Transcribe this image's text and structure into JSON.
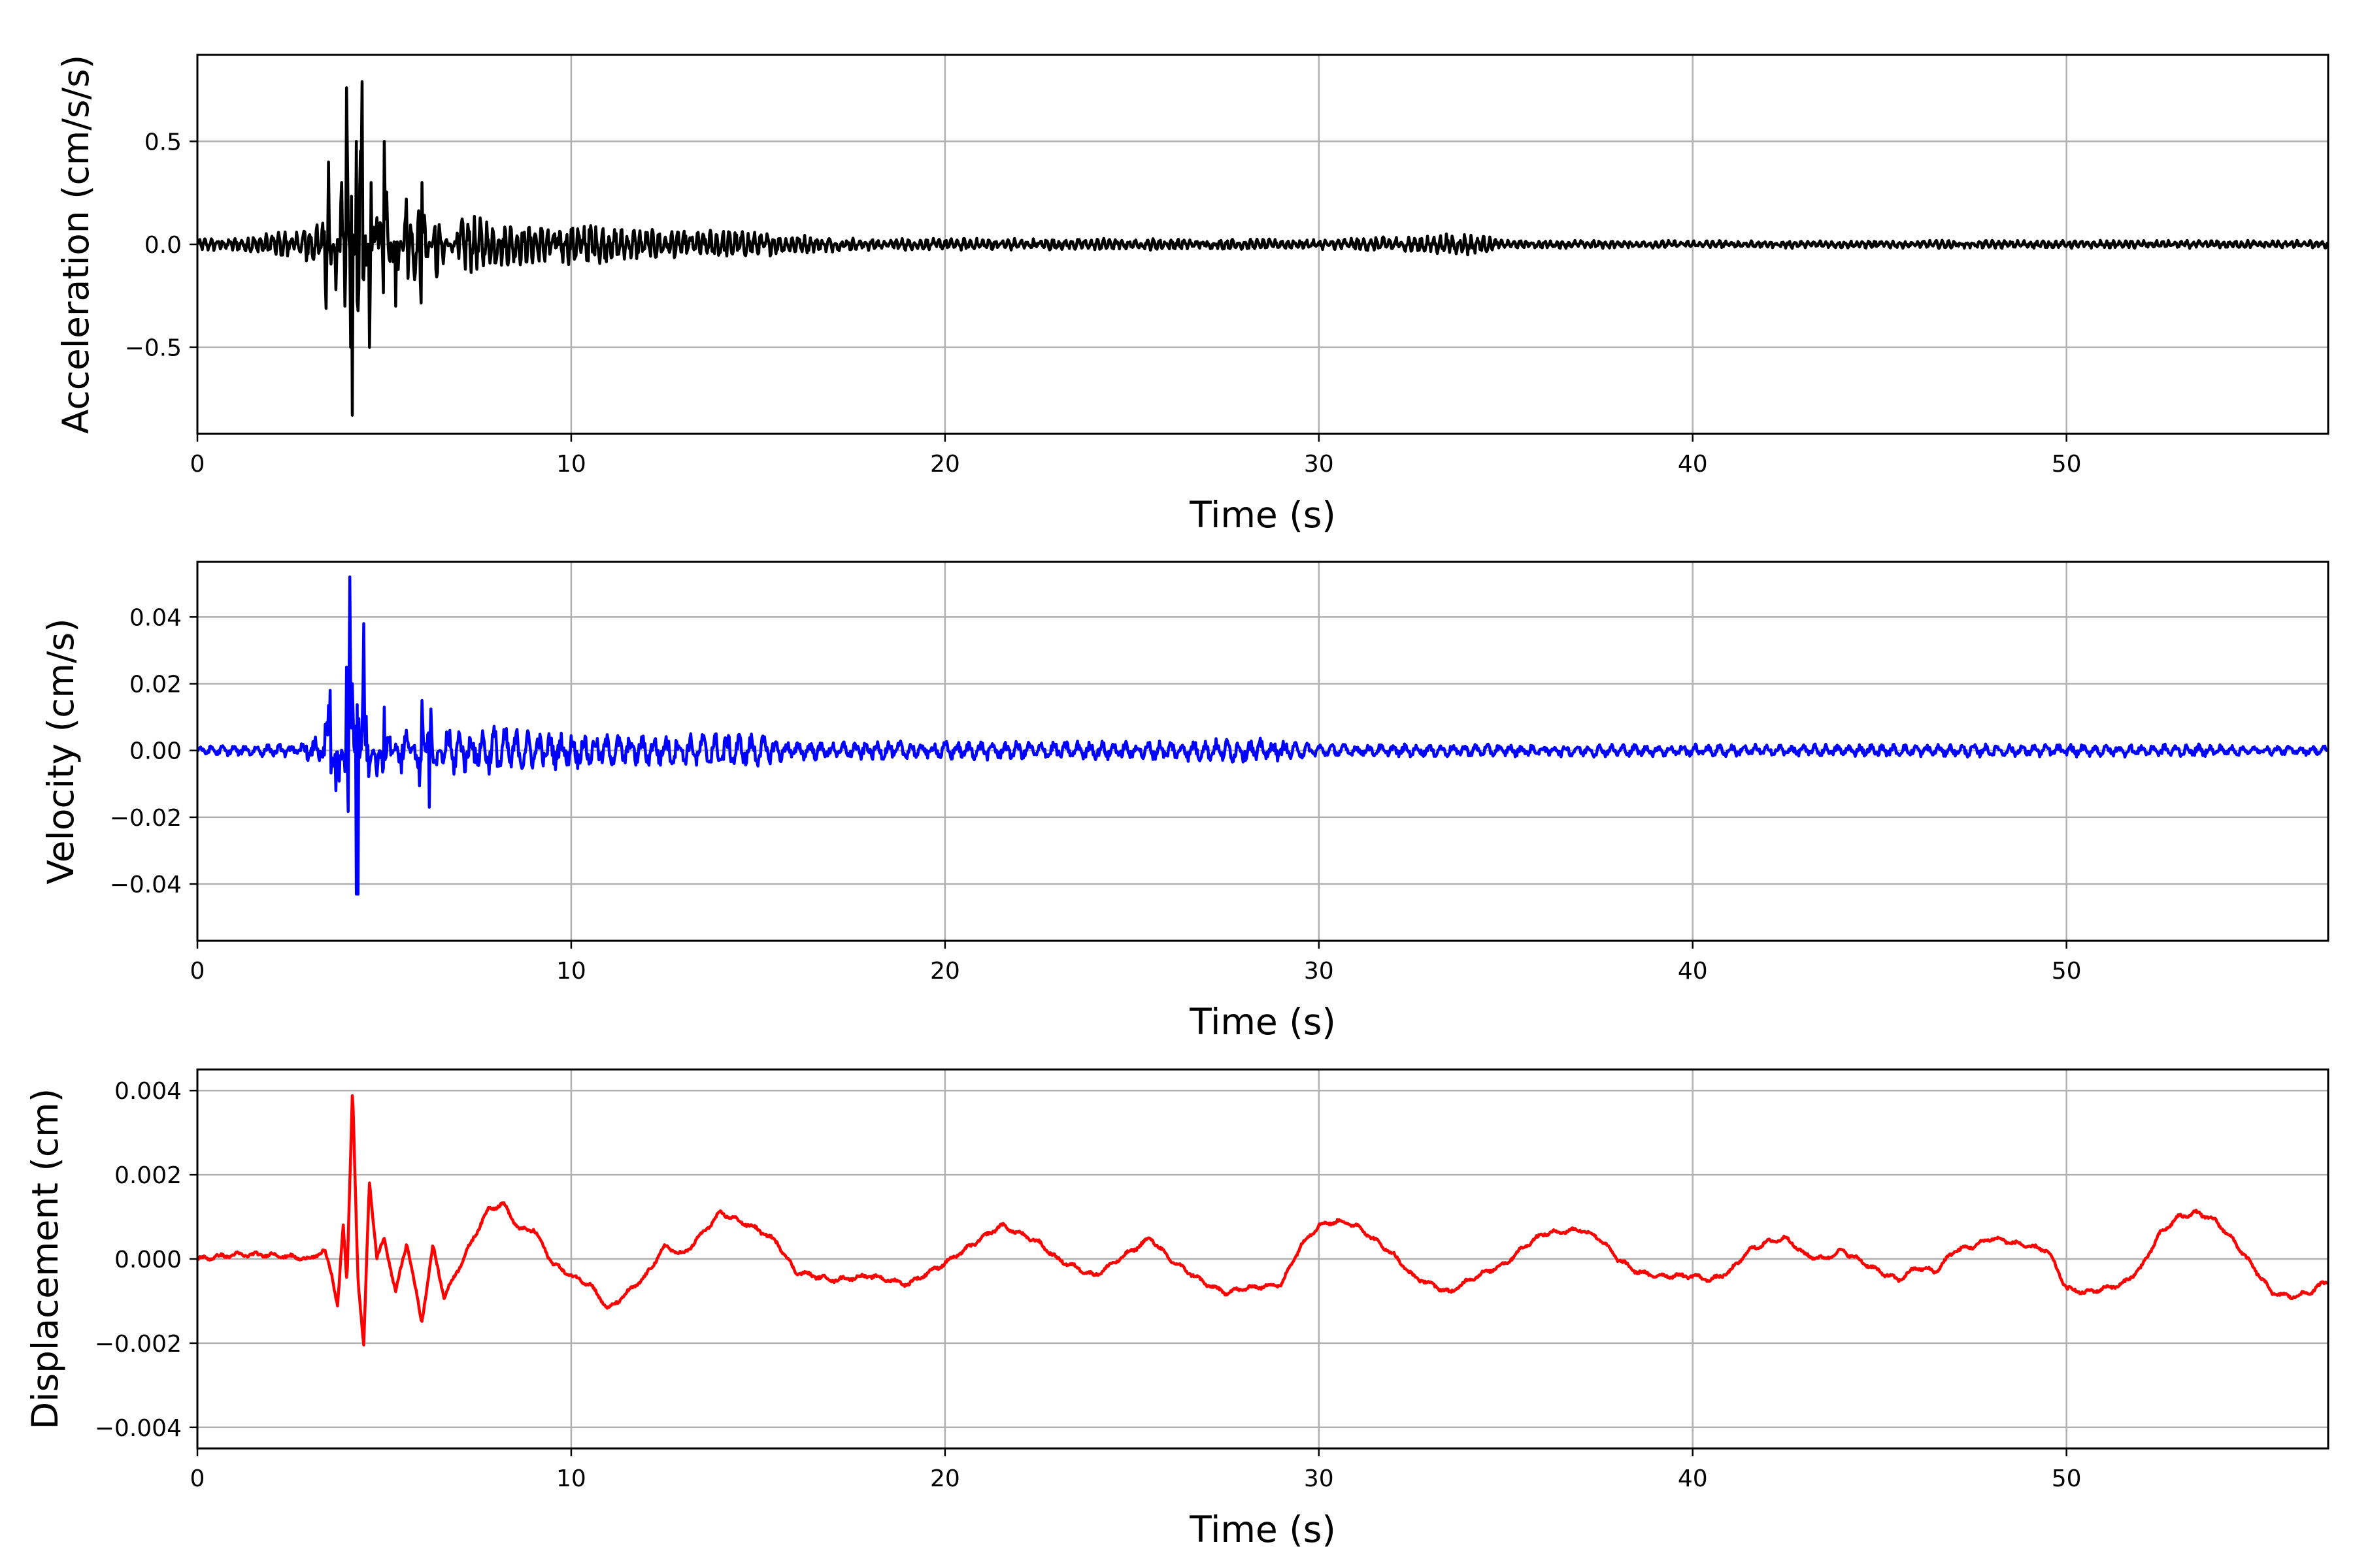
{
  "chart_data": [
    {
      "type": "line",
      "xlabel": "Time (s)",
      "ylabel": "Acceleration (cm/s/s)",
      "xlim": [
        0,
        57
      ],
      "ylim": [
        -0.92,
        0.92
      ],
      "xticks": [
        0,
        10,
        20,
        30,
        40,
        50
      ],
      "xtick_labels": [
        "0",
        "10",
        "20",
        "30",
        "40",
        "50"
      ],
      "yticks": [
        0.5,
        0.0,
        -0.5
      ],
      "ytick_labels": [
        "0.5",
        "0.0",
        "−0.5"
      ],
      "grid": true,
      "color": "#000000",
      "series": [
        {
          "x": [
            0,
            1,
            2,
            3,
            3.3,
            3.5,
            3.7,
            3.85,
            4.0,
            4.1,
            4.15,
            4.25,
            4.4,
            4.5,
            4.65,
            4.8,
            5.0,
            5.3,
            5.6,
            6.0,
            6.4,
            7.0,
            8.0,
            9.0,
            10.0,
            10.5,
            11.0,
            12.0,
            13.0,
            14.0,
            15.0,
            16.0,
            18.0,
            20.0,
            25.0,
            30.0,
            34.0,
            35.0,
            40.0,
            45.0,
            50.0,
            55.0,
            57.0
          ],
          "y": [
            0.03,
            0.04,
            0.06,
            0.1,
            0.12,
            0.4,
            -0.22,
            0.3,
            0.76,
            -0.5,
            -0.83,
            0.5,
            0.79,
            -0.2,
            0.3,
            -0.2,
            0.5,
            -0.3,
            0.22,
            0.3,
            -0.2,
            0.15,
            0.12,
            0.1,
            0.1,
            0.12,
            0.09,
            0.08,
            0.07,
            0.08,
            0.06,
            0.05,
            0.03,
            0.03,
            0.03,
            0.025,
            0.06,
            0.02,
            0.02,
            0.02,
            0.02,
            0.02,
            0.02
          ],
          "style": "envelope"
        }
      ]
    },
    {
      "type": "line",
      "xlabel": "Time (s)",
      "ylabel": "Velocity (cm/s)",
      "xlim": [
        0,
        57
      ],
      "ylim": [
        -0.057,
        0.0565
      ],
      "xticks": [
        0,
        10,
        20,
        30,
        40,
        50
      ],
      "xtick_labels": [
        "0",
        "10",
        "20",
        "30",
        "40",
        "50"
      ],
      "yticks": [
        0.04,
        0.02,
        0.0,
        -0.02,
        -0.04
      ],
      "ytick_labels": [
        "0.04",
        "0.02",
        "0.00",
        "−0.02",
        "−0.04"
      ],
      "grid": true,
      "color": "#0000ff",
      "series": [
        {
          "x": [
            0,
            2.5,
            3.3,
            3.55,
            3.8,
            4.0,
            4.08,
            4.15,
            4.3,
            4.45,
            4.6,
            4.8,
            5.0,
            5.5,
            6.0,
            6.2,
            6.6,
            7.5,
            8.0,
            9.0,
            10.0,
            11.0,
            13.0,
            14.0,
            15.0,
            16.0,
            18.0,
            20.0,
            25.0,
            28.5,
            30.0,
            35.0,
            40.0,
            45.0,
            50.0,
            53.0,
            54.0,
            55.0,
            57.0
          ],
          "y": [
            0.0015,
            0.002,
            0.005,
            0.018,
            -0.01,
            0.025,
            0.052,
            0.02,
            -0.043,
            0.038,
            0.01,
            -0.01,
            0.013,
            -0.012,
            0.015,
            -0.017,
            0.008,
            0.007,
            0.008,
            0.006,
            0.006,
            0.005,
            0.005,
            0.006,
            0.005,
            0.003,
            0.003,
            0.003,
            0.003,
            0.004,
            0.002,
            0.002,
            0.002,
            0.002,
            0.002,
            0.002,
            0.002,
            0.0015,
            0.0015
          ],
          "style": "envelope"
        }
      ]
    },
    {
      "type": "line",
      "xlabel": "Time (s)",
      "ylabel": "Displacement (cm)",
      "xlim": [
        0,
        57
      ],
      "ylim": [
        -0.0045,
        0.0045
      ],
      "xticks": [
        0,
        10,
        20,
        30,
        40,
        50
      ],
      "xtick_labels": [
        "0",
        "10",
        "20",
        "30",
        "40",
        "50"
      ],
      "yticks": [
        0.004,
        0.002,
        0.0,
        -0.002,
        -0.004
      ],
      "ytick_labels": [
        "0.004",
        "0.002",
        "0.000",
        "−0.002",
        "−0.004"
      ],
      "grid": true,
      "color": "#ff0000",
      "series": [
        {
          "x": [
            0,
            1,
            2,
            3,
            3.4,
            3.6,
            3.75,
            3.9,
            4.0,
            4.15,
            4.3,
            4.45,
            4.6,
            4.8,
            5.0,
            5.3,
            5.6,
            6.0,
            6.3,
            6.6,
            7.0,
            7.5,
            7.8,
            8.2,
            8.6,
            9.0,
            9.5,
            10.0,
            10.5,
            11.0,
            11.5,
            12.0,
            12.5,
            13.0,
            13.5,
            14.0,
            14.5,
            15.0,
            15.5,
            16.0,
            16.5,
            17.0,
            18.0,
            19.0,
            20.0,
            20.5,
            21.0,
            21.5,
            22.0,
            22.5,
            23.0,
            24.0,
            25.0,
            25.5,
            26.0,
            27.0,
            27.5,
            28.0,
            29.0,
            29.5,
            30.0,
            30.5,
            31.0,
            32.0,
            32.5,
            33.0,
            33.5,
            34.0,
            35.0,
            35.5,
            36.0,
            37.0,
            37.5,
            38.0,
            38.5,
            39.0,
            40.0,
            40.5,
            41.0,
            41.5,
            42.0,
            42.5,
            43.0,
            43.5,
            44.0,
            45.0,
            45.5,
            46.0,
            46.5,
            47.0,
            47.5,
            48.0,
            49.0,
            49.5,
            50.0,
            50.5,
            51.0,
            51.5,
            52.0,
            52.5,
            53.0,
            53.5,
            54.0,
            54.5,
            55.0,
            55.5,
            56.0,
            56.5,
            57.0
          ],
          "y": [
            0.0,
            0.0001,
            0.0001,
            0.0,
            0.0002,
            -0.0004,
            -0.0011,
            0.0008,
            -0.0006,
            0.0041,
            -0.0006,
            -0.0021,
            0.0019,
            0.0,
            0.0005,
            -0.0008,
            0.0004,
            -0.0015,
            0.0003,
            -0.0009,
            -0.0002,
            0.0007,
            0.0012,
            0.0013,
            0.0007,
            0.0007,
            -0.0001,
            -0.0004,
            -0.0006,
            -0.0012,
            -0.0008,
            -0.0004,
            0.0003,
            0.0001,
            0.0006,
            0.0011,
            0.0009,
            0.0007,
            0.0004,
            -0.0003,
            -0.0004,
            -0.0005,
            -0.0004,
            -0.0006,
            -0.0001,
            0.0002,
            0.0005,
            0.0008,
            0.0006,
            0.0004,
            0.0,
            -0.0004,
            0.0002,
            0.0005,
            0.0,
            -0.0006,
            -0.0008,
            -0.0007,
            -0.0006,
            0.0003,
            0.0008,
            0.0009,
            0.0008,
            0.0001,
            -0.0004,
            -0.0006,
            -0.0008,
            -0.0005,
            -0.0001,
            0.0003,
            0.0006,
            0.0007,
            0.0005,
            0.0,
            -0.0003,
            -0.0004,
            -0.0004,
            -0.0005,
            -0.0003,
            0.0002,
            0.0004,
            0.0005,
            0.0001,
            0.0,
            0.0002,
            -0.0003,
            -0.0005,
            -0.0002,
            -0.0003,
            0.0002,
            0.0003,
            0.0005,
            0.0003,
            0.0002,
            -0.0007,
            -0.0008,
            -0.0007,
            -0.0006,
            -0.0002,
            0.0006,
            0.001,
            0.0011,
            0.0009,
            0.0004,
            -0.0002,
            -0.0008,
            -0.0009,
            -0.0008,
            -0.0005
          ],
          "style": "waveform"
        }
      ]
    }
  ]
}
